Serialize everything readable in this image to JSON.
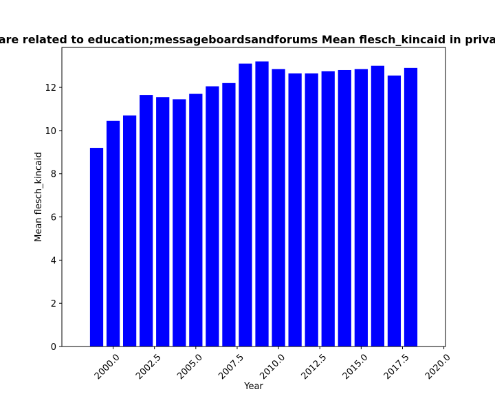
{
  "chart_data": {
    "type": "bar",
    "title": "are related to education;messageboardsandforums Mean flesch_kincaid in priva",
    "xlabel": "Year",
    "ylabel": "Mean flesch_kincaid",
    "x": [
      1999,
      2000,
      2001,
      2002,
      2003,
      2004,
      2005,
      2006,
      2007,
      2008,
      2009,
      2010,
      2011,
      2012,
      2013,
      2014,
      2015,
      2016,
      2017,
      2018
    ],
    "values": [
      9.2,
      10.45,
      10.7,
      11.65,
      11.55,
      11.45,
      11.7,
      12.05,
      12.2,
      13.1,
      13.2,
      12.85,
      12.65,
      12.65,
      12.75,
      12.8,
      12.85,
      13.0,
      12.55,
      12.9
    ],
    "bar_color": "#0000ff",
    "xlim": [
      1996.9,
      2020.1
    ],
    "ylim": [
      0,
      13.85
    ],
    "xticks": [
      2000.0,
      2002.5,
      2005.0,
      2007.5,
      2010.0,
      2012.5,
      2015.0,
      2017.5,
      2020.0
    ],
    "xtick_labels": [
      "2000.0",
      "2002.5",
      "2005.0",
      "2007.5",
      "2010.0",
      "2012.5",
      "2015.0",
      "2017.5",
      "2020.0"
    ],
    "yticks": [
      0,
      2,
      4,
      6,
      8,
      10,
      12
    ],
    "ytick_labels": [
      "0",
      "2",
      "4",
      "6",
      "8",
      "10",
      "12"
    ],
    "grid": false,
    "legend": "none"
  }
}
